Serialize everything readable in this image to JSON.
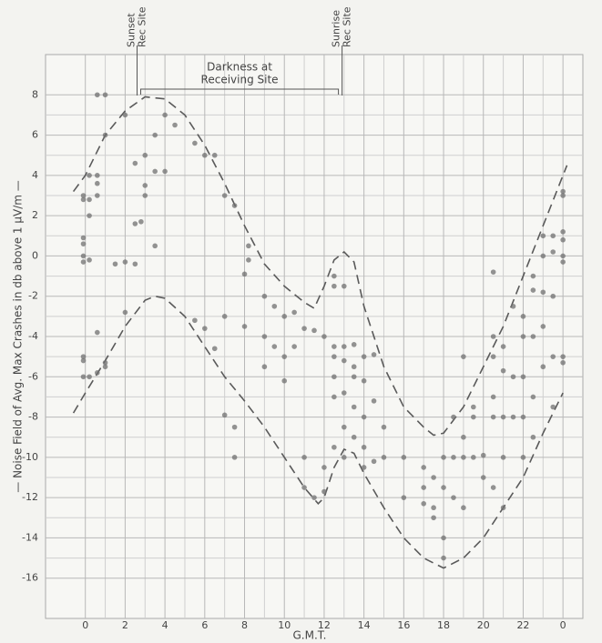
{
  "chart_data": {
    "type": "scatter",
    "y_label": "— Noise Field of Avg. Max Crashes in db above 1 µV/m —",
    "x_label": "G.M.T.",
    "xlim": [
      -2,
      25
    ],
    "ylim": [
      -18,
      10
    ],
    "xticks": [
      0,
      2,
      4,
      6,
      8,
      10,
      12,
      14,
      16,
      18,
      20,
      {
        "value": 22,
        "label": "22"
      },
      {
        "value": 24,
        "label": "0"
      }
    ],
    "yticks": [
      8,
      6,
      4,
      2,
      0,
      -2,
      -4,
      -6,
      -8,
      -10,
      -12,
      -14,
      -16
    ],
    "grid": true,
    "minor_grid": true,
    "color": "#707070",
    "x": [
      -0.1,
      -0.1,
      -0.1,
      -0.1,
      -0.1,
      -0.1,
      -0.1,
      -0.1,
      -0.1,
      0.2,
      0.2,
      0.2,
      0.2,
      0.2,
      0.6,
      0.6,
      0.6,
      0.6,
      0.6,
      0.6,
      1,
      1,
      1,
      1,
      1.5,
      2,
      2,
      2,
      2.5,
      2.5,
      2.5,
      2.8,
      3,
      3,
      3,
      3.5,
      3.5,
      3.5,
      4,
      4,
      4.5,
      5.5,
      5.5,
      6,
      6,
      6.5,
      6.5,
      7,
      7,
      7,
      7.5,
      7.5,
      7.5,
      8,
      8,
      8.2,
      8.2,
      9,
      9,
      9,
      9.5,
      9.5,
      10,
      10,
      10,
      10.5,
      10.5,
      11,
      11,
      11,
      11.5,
      11.5,
      12,
      12,
      12,
      12.5,
      12.5,
      12.5,
      12.5,
      12.5,
      12.5,
      12.5,
      13,
      13,
      13,
      13,
      13,
      13,
      13.5,
      13.5,
      13.5,
      13.5,
      13.5,
      14,
      14,
      14,
      14,
      14,
      14.5,
      14.5,
      14.5,
      15,
      15,
      16,
      16,
      17,
      17,
      17,
      17.5,
      17.5,
      17.5,
      18,
      18,
      18,
      18,
      18.5,
      18.5,
      18.5,
      19,
      19,
      19,
      19,
      19.5,
      19.5,
      19.5,
      20,
      20,
      20.5,
      20.5,
      20.5,
      20.5,
      20.5,
      20.5,
      21,
      21,
      21,
      21,
      21,
      21.5,
      21.5,
      21.5,
      22,
      22,
      22,
      22,
      22,
      22.5,
      22.5,
      22.5,
      22.5,
      22.5,
      23,
      23,
      23,
      23,
      23,
      23.5,
      23.5,
      23.5,
      23.5,
      23.5,
      24,
      24,
      24,
      24,
      24,
      24,
      24,
      24
    ],
    "values": [
      0.6,
      0.9,
      0,
      -0.3,
      2.8,
      3,
      -5,
      -5.2,
      -6,
      2,
      2.8,
      4,
      -0.2,
      -6,
      8,
      3.6,
      3,
      4,
      -3.8,
      -5.8,
      8,
      6,
      -5.5,
      -5.3,
      -0.4,
      7,
      -0.3,
      -2.8,
      -0.4,
      1.6,
      4.6,
      1.7,
      5,
      3.5,
      3,
      6,
      4.2,
      0.5,
      7,
      4.2,
      6.5,
      5.6,
      -3.2,
      5,
      -3.6,
      5,
      -4.6,
      3,
      -3,
      -7.9,
      2.5,
      -8.5,
      -10,
      -0.9,
      -3.5,
      0.5,
      -0.2,
      -2,
      -4,
      -5.5,
      -2.5,
      -4.5,
      -3,
      -5,
      -6.2,
      -2.8,
      -4.5,
      -3.6,
      -10,
      -11.5,
      -3.7,
      -12,
      -4,
      -10.5,
      -11.7,
      -1,
      -1.5,
      -4.5,
      -5,
      -6,
      -7,
      -9.5,
      -1.5,
      -4.5,
      -5.2,
      -6.8,
      -8.5,
      -10,
      -4.4,
      -5.5,
      -6,
      -7.5,
      -9,
      -5,
      -6.2,
      -8,
      -9.5,
      -10.5,
      -4.9,
      -7.2,
      -10.2,
      -8.5,
      -10,
      -12,
      -10,
      -10.5,
      -11.5,
      -12.3,
      -12.5,
      -13,
      -11,
      -10,
      -11.5,
      -14,
      -15,
      -8,
      -10,
      -12,
      -9,
      -5,
      -10,
      -12.5,
      -8,
      -7.5,
      -10,
      -9.9,
      -11,
      -0.8,
      -4,
      -5,
      -7,
      -8,
      -11.5,
      -4.5,
      -5.7,
      -8,
      -10,
      -12.5,
      -2.5,
      -6,
      -8,
      -3,
      -4,
      -6,
      -8,
      -10,
      -1,
      -1.7,
      -4,
      -7,
      -9,
      1,
      0,
      -1.8,
      -3.5,
      -5.5,
      1,
      0.2,
      -2,
      -5,
      -7.5,
      1.2,
      0.8,
      0,
      -0.3,
      -5,
      -5.3,
      3.2,
      3
    ],
    "curves": [
      {
        "color": "#5a5a5a",
        "x": [
          -0.6,
          0,
          1,
          2,
          3,
          4,
          5,
          6,
          7,
          8,
          9,
          10,
          11,
          11.5,
          12,
          12.5,
          13,
          13.5,
          14,
          15,
          16,
          17,
          17.5,
          18,
          19,
          20,
          21,
          22,
          23,
          24,
          24.2
        ],
        "values": [
          3.2,
          4,
          6,
          7.2,
          7.9,
          7.8,
          7,
          5.5,
          3.6,
          1.5,
          -0.4,
          -1.5,
          -2.3,
          -2.6,
          -1.5,
          -0.2,
          0.2,
          -0.3,
          -2.5,
          -5.5,
          -7.5,
          -8.5,
          -8.9,
          -8.8,
          -7.5,
          -5.5,
          -3.5,
          -1,
          1.5,
          4,
          4.5
        ]
      },
      {
        "color": "#5a5a5a",
        "x": [
          -0.6,
          0,
          1,
          2,
          3,
          3.5,
          4,
          5,
          6,
          7,
          8,
          9,
          10,
          11,
          11.7,
          12,
          12.5,
          13,
          13.5,
          14,
          15,
          16,
          17,
          18,
          19,
          20,
          21,
          22,
          23,
          24
        ],
        "values": [
          -7.8,
          -6.8,
          -5.2,
          -3.5,
          -2.2,
          -2,
          -2.1,
          -3,
          -4.5,
          -6,
          -7.2,
          -8.5,
          -10,
          -11.5,
          -12.3,
          -12,
          -10.5,
          -9.6,
          -9.8,
          -10.8,
          -12.5,
          -14,
          -15,
          -15.5,
          -15,
          -14,
          -12.5,
          -11,
          -8.8,
          -6.8
        ]
      }
    ],
    "annotations": [
      {
        "lines": [
          "Sunset",
          "Rec Site"
        ],
        "x": 2.6
      },
      {
        "lines": [
          "Sunrise",
          "Rec Site"
        ],
        "x": 12.9
      }
    ],
    "span_label": [
      "Darkness at",
      "Receiving Site"
    ]
  }
}
